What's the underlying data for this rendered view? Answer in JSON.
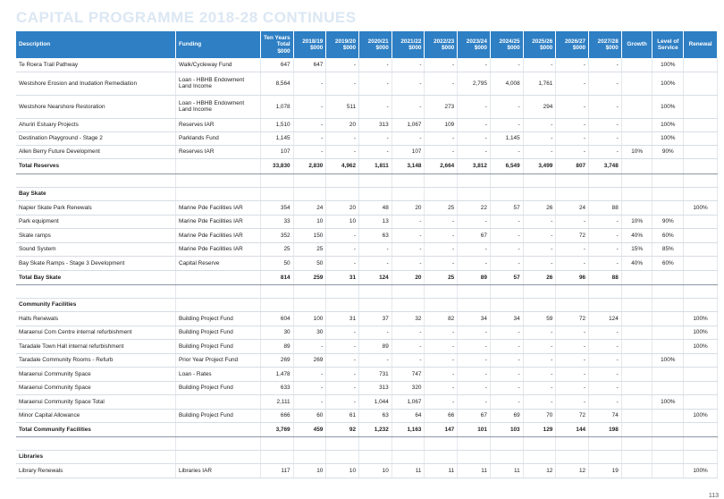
{
  "title": "CAPITAL PROGRAMME 2018-28 CONTINUES",
  "page_number": "113",
  "headers": [
    "Description",
    "Funding",
    "Ten Years Total $000",
    "2018/19 $000",
    "2019/20 $000",
    "2020/21 $000",
    "2021/22 $000",
    "2022/23 $000",
    "2023/24 $000",
    "2024/25 $000",
    "2025/26 $000",
    "2026/27 $000",
    "2027/28 $000",
    "Growth",
    "Level of Service",
    "Renewal"
  ],
  "rows": [
    {
      "type": "row",
      "h": 15,
      "cells": [
        "Te Roera Trail Pathway",
        "Walk/Cycleway Fund",
        "647",
        "647",
        "-",
        "-",
        "-",
        "-",
        "-",
        "-",
        "-",
        "-",
        "-",
        "",
        "100%",
        ""
      ]
    },
    {
      "type": "row",
      "h": 26,
      "cells": [
        "Westshore Erosion and Inudation Remediation",
        "Loan - HBHB Endowment Land Income",
        "8,564",
        "-",
        "-",
        "-",
        "-",
        "-",
        "2,795",
        "4,008",
        "1,761",
        "-",
        "-",
        "",
        "100%",
        ""
      ]
    },
    {
      "type": "row",
      "h": 26,
      "cells": [
        "Westshore Nearshore Restoration",
        "Loan - HBHB Endowment Land Income",
        "1,078",
        "-",
        "511",
        "-",
        "-",
        "273",
        "-",
        "-",
        "294",
        "-",
        "-",
        "",
        "100%",
        ""
      ]
    },
    {
      "type": "row",
      "h": 15,
      "cells": [
        "Ahuriri Estuary Projects",
        "Reserves IAR",
        "1,510",
        "-",
        "20",
        "313",
        "1,067",
        "109",
        "-",
        "-",
        "-",
        "-",
        "-",
        "",
        "100%",
        ""
      ]
    },
    {
      "type": "row",
      "h": 15,
      "cells": [
        "Destination Playground - Stage 2",
        "Parklands Fund",
        "1,145",
        "-",
        "-",
        "-",
        "-",
        "-",
        "-",
        "1,145",
        "-",
        "-",
        "-",
        "",
        "100%",
        ""
      ]
    },
    {
      "type": "row",
      "h": 15,
      "cells": [
        "Allen Berry Future Development",
        "Reserves IAR",
        "107",
        "-",
        "-",
        "-",
        "107",
        "-",
        "-",
        "-",
        "-",
        "-",
        "-",
        "10%",
        "90%",
        ""
      ]
    },
    {
      "type": "total",
      "h": 17,
      "cells": [
        "Total Reserves",
        "",
        "33,830",
        "2,830",
        "4,962",
        "1,811",
        "3,148",
        "2,664",
        "3,812",
        "6,549",
        "3,499",
        "807",
        "3,748",
        "",
        "",
        ""
      ]
    },
    {
      "type": "blank",
      "h": 15,
      "cells": [
        "",
        "",
        "",
        "",
        "",
        "",
        "",
        "",
        "",
        "",
        "",
        "",
        "",
        "",
        "",
        ""
      ]
    },
    {
      "type": "section",
      "h": 15,
      "cells": [
        "Bay Skate",
        "",
        "",
        "",
        "",
        "",
        "",
        "",
        "",
        "",
        "",
        "",
        "",
        "",
        "",
        ""
      ]
    },
    {
      "type": "row",
      "h": 16,
      "cells": [
        "Napier Skate Park Renewals",
        "Marine Pde Facilities IAR",
        "354",
        "24",
        "20",
        "48",
        "20",
        "25",
        "22",
        "57",
        "26",
        "24",
        "88",
        "",
        "",
        "100%"
      ]
    },
    {
      "type": "row",
      "h": 15,
      "cells": [
        "Park equipment",
        "Marine Pde Facilities IAR",
        "33",
        "10",
        "10",
        "13",
        "-",
        "-",
        "-",
        "-",
        "-",
        "-",
        "-",
        "10%",
        "90%",
        ""
      ]
    },
    {
      "type": "row",
      "h": 16,
      "cells": [
        "Skate ramps",
        "Marine Pde Facilities IAR",
        "352",
        "150",
        "-",
        "63",
        "-",
        "-",
        "67",
        "-",
        "-",
        "72",
        "-",
        "40%",
        "60%",
        ""
      ]
    },
    {
      "type": "row",
      "h": 15,
      "cells": [
        "Sound System",
        "Marine Pde Facilities IAR",
        "25",
        "25",
        "-",
        "-",
        "-",
        "-",
        "-",
        "-",
        "-",
        "-",
        "-",
        "15%",
        "85%",
        ""
      ]
    },
    {
      "type": "row",
      "h": 16,
      "cells": [
        "Bay Skate Ramps - Stage 3 Development",
        "Capital Reserve",
        "50",
        "50",
        "-",
        "-",
        "-",
        "-",
        "-",
        "-",
        "-",
        "-",
        "-",
        "40%",
        "60%",
        ""
      ]
    },
    {
      "type": "total",
      "h": 16,
      "cells": [
        "Total Bay Skate",
        "",
        "814",
        "259",
        "31",
        "124",
        "20",
        "25",
        "89",
        "57",
        "26",
        "96",
        "88",
        "",
        "",
        ""
      ]
    },
    {
      "type": "blank",
      "h": 15,
      "cells": [
        "",
        "",
        "",
        "",
        "",
        "",
        "",
        "",
        "",
        "",
        "",
        "",
        "",
        "",
        "",
        ""
      ]
    },
    {
      "type": "section",
      "h": 15,
      "cells": [
        "Community Facilities",
        "",
        "",
        "",
        "",
        "",
        "",
        "",
        "",
        "",
        "",
        "",
        "",
        "",
        "",
        ""
      ]
    },
    {
      "type": "row",
      "h": 16,
      "cells": [
        "Halls Renewals",
        "Building Project Fund",
        "604",
        "100",
        "31",
        "37",
        "32",
        "82",
        "34",
        "34",
        "59",
        "72",
        "124",
        "",
        "",
        "100%"
      ]
    },
    {
      "type": "row",
      "h": 15,
      "cells": [
        "Maraenui Com Centre internal refurbishment",
        "Building Project Fund",
        "30",
        "30",
        "-",
        "-",
        "-",
        "-",
        "-",
        "-",
        "-",
        "-",
        "-",
        "",
        "",
        "100%"
      ]
    },
    {
      "type": "row",
      "h": 16,
      "cells": [
        "Taradale Town Hall internal refurbishment",
        "Building Project Fund",
        "89",
        "-",
        "-",
        "89",
        "-",
        "-",
        "-",
        "-",
        "-",
        "-",
        "-",
        "",
        "",
        "100%"
      ]
    },
    {
      "type": "row",
      "h": 15,
      "cells": [
        "Taradale Community Rooms - Refurb",
        "Prior Year Project Fund",
        "269",
        "269",
        "-",
        "-",
        "-",
        "-",
        "-",
        "-",
        "-",
        "-",
        "-",
        "",
        "100%",
        ""
      ]
    },
    {
      "type": "row",
      "h": 16,
      "cells": [
        "Maraenui Community Space",
        "Loan - Rates",
        "1,478",
        "-",
        "-",
        "731",
        "747",
        "-",
        "-",
        "-",
        "-",
        "-",
        "-",
        "",
        "",
        ""
      ]
    },
    {
      "type": "row",
      "h": 15,
      "cells": [
        "Maraenui Community Space",
        "Building Project Fund",
        "633",
        "-",
        "-",
        "313",
        "320",
        "-",
        "-",
        "-",
        "-",
        "-",
        "-",
        "",
        "",
        ""
      ]
    },
    {
      "type": "row",
      "h": 16,
      "cells": [
        "Maraenui Community Space Total",
        "",
        "2,111",
        "-",
        "-",
        "1,044",
        "1,067",
        "-",
        "-",
        "-",
        "-",
        "-",
        "-",
        "",
        "100%",
        ""
      ]
    },
    {
      "type": "row",
      "h": 15,
      "cells": [
        "Minor Capital Allowance",
        "Building Project Fund",
        "666",
        "60",
        "61",
        "63",
        "64",
        "66",
        "67",
        "69",
        "70",
        "72",
        "74",
        "",
        "",
        "100%"
      ]
    },
    {
      "type": "total",
      "h": 16,
      "cells": [
        "Total Community Facilities",
        "",
        "3,769",
        "459",
        "92",
        "1,232",
        "1,163",
        "147",
        "101",
        "103",
        "129",
        "144",
        "198",
        "",
        "",
        ""
      ]
    },
    {
      "type": "blank",
      "h": 15,
      "cells": [
        "",
        "",
        "",
        "",
        "",
        "",
        "",
        "",
        "",
        "",
        "",
        "",
        "",
        "",
        "",
        ""
      ]
    },
    {
      "type": "section",
      "h": 15,
      "cells": [
        "Libraries",
        "",
        "",
        "",
        "",
        "",
        "",
        "",
        "",
        "",
        "",
        "",
        "",
        "",
        "",
        ""
      ]
    },
    {
      "type": "row",
      "h": 16,
      "cells": [
        "Library Renewals",
        "Libraries IAR",
        "117",
        "10",
        "10",
        "10",
        "11",
        "11",
        "11",
        "11",
        "12",
        "12",
        "19",
        "",
        "",
        "100%"
      ]
    }
  ]
}
